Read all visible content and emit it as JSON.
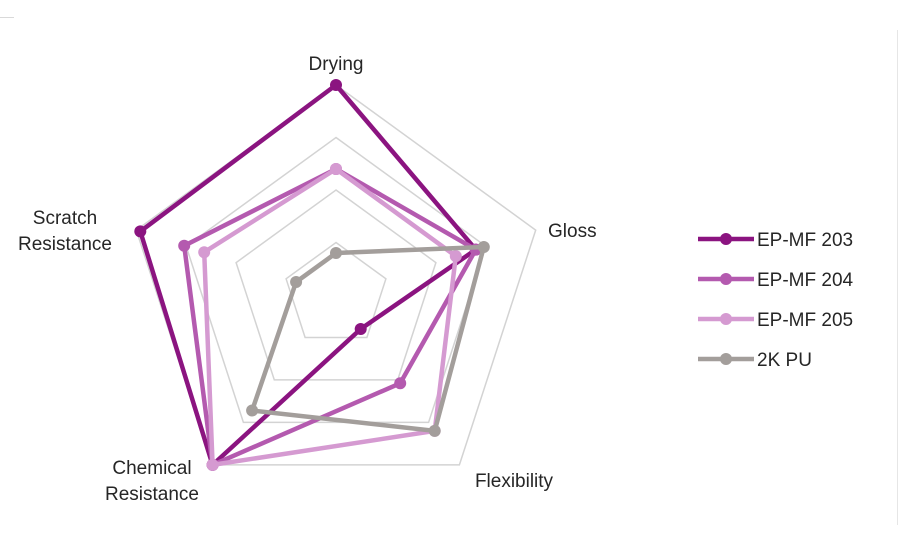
{
  "chart_data": {
    "type": "radar",
    "axes": [
      "Drying",
      "Gloss",
      "Flexibility",
      "Chemical Resistance",
      "Scratch Resistance"
    ],
    "axis_label_lines": [
      [
        "Drying"
      ],
      [
        "Gloss"
      ],
      [
        "Flexibility"
      ],
      [
        "Chemical",
        "Resistance"
      ],
      [
        "Scratch",
        "Resistance"
      ]
    ],
    "range": [
      0,
      5
    ],
    "grid_rings": 4,
    "series": [
      {
        "name": "EP-MF 203",
        "color": "#8b1480",
        "values": [
          5,
          3.5,
          1,
          5,
          4.9
        ]
      },
      {
        "name": "EP-MF 204",
        "color": "#b45aaf",
        "values": [
          3,
          3.5,
          2.6,
          5,
          3.8
        ]
      },
      {
        "name": "EP-MF 205",
        "color": "#d59ad1",
        "values": [
          3,
          3,
          4,
          5,
          3.3
        ]
      },
      {
        "name": "2K PU",
        "color": "#a39e9b",
        "values": [
          1,
          3.7,
          4,
          3.4,
          1
        ]
      }
    ],
    "legend": "right"
  }
}
